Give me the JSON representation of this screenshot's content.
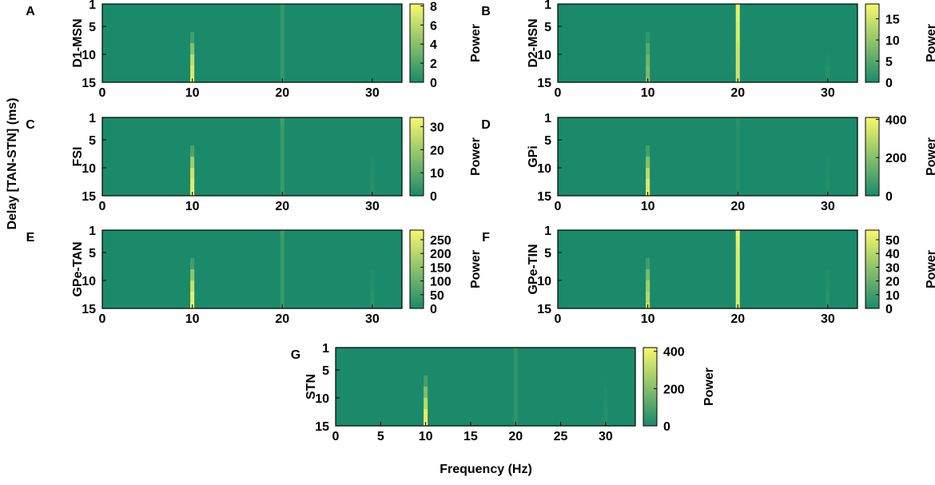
{
  "figure": {
    "ylabel": "Delay [TAN-STN] (ms)",
    "xlabel": "Frequency (Hz)"
  },
  "chart_data": [
    {
      "type": "heatmap",
      "label": "A",
      "ylabel": "D1-MSN",
      "colorbar_label": "Power",
      "colormap": [
        "#1a8a6a",
        "#f8f86c"
      ],
      "x": [
        10,
        20,
        30
      ],
      "y": [
        1,
        3,
        5,
        7,
        9,
        11,
        13,
        15
      ],
      "values": [
        [
          0,
          1,
          0
        ],
        [
          0,
          1,
          0
        ],
        [
          0,
          1,
          0
        ],
        [
          1.5,
          1,
          0
        ],
        [
          4,
          1,
          0
        ],
        [
          6,
          1,
          0
        ],
        [
          7,
          1,
          0
        ],
        [
          8,
          1,
          0
        ]
      ],
      "xlim": [
        0,
        33.3
      ],
      "xticks": [
        0,
        10,
        20,
        30
      ],
      "ylim": [
        15,
        1
      ],
      "yticks": [
        1,
        5,
        10,
        15
      ],
      "zlim": [
        0,
        8.2
      ],
      "zticks": [
        0,
        2,
        4,
        6,
        8
      ]
    },
    {
      "type": "heatmap",
      "label": "B",
      "ylabel": "D2-MSN",
      "colorbar_label": "Power",
      "colormap": [
        "#1a8a6a",
        "#f8f86c"
      ],
      "x": [
        10,
        20,
        30
      ],
      "y": [
        1,
        3,
        5,
        7,
        9,
        11,
        13,
        15
      ],
      "values": [
        [
          0,
          17,
          0
        ],
        [
          0,
          17,
          0
        ],
        [
          0,
          16,
          0
        ],
        [
          2,
          16,
          0
        ],
        [
          5,
          15,
          0
        ],
        [
          7,
          15,
          0.5
        ],
        [
          8,
          15,
          1
        ],
        [
          9,
          15,
          1
        ]
      ],
      "xlim": [
        0,
        33.3
      ],
      "xticks": [
        0,
        10,
        20,
        30
      ],
      "ylim": [
        15,
        1
      ],
      "yticks": [
        1,
        5,
        10,
        15
      ],
      "zlim": [
        0,
        18.5
      ],
      "zticks": [
        0,
        5,
        10,
        15
      ]
    },
    {
      "type": "heatmap",
      "label": "C",
      "ylabel": "FSI",
      "colorbar_label": "Power",
      "colormap": [
        "#1a8a6a",
        "#f8f86c"
      ],
      "x": [
        10,
        20,
        30
      ],
      "y": [
        1,
        3,
        5,
        7,
        9,
        11,
        13,
        15
      ],
      "values": [
        [
          0,
          6,
          0
        ],
        [
          0,
          5,
          0
        ],
        [
          0,
          5,
          0
        ],
        [
          8,
          5,
          0
        ],
        [
          20,
          5,
          1
        ],
        [
          27,
          5,
          1.5
        ],
        [
          30,
          5,
          2
        ],
        [
          33,
          5,
          2
        ]
      ],
      "xlim": [
        0,
        33.3
      ],
      "xticks": [
        0,
        10,
        20,
        30
      ],
      "ylim": [
        15,
        1
      ],
      "yticks": [
        1,
        5,
        10,
        15
      ],
      "zlim": [
        0,
        34
      ],
      "zticks": [
        0,
        10,
        20,
        30
      ]
    },
    {
      "type": "heatmap",
      "label": "D",
      "ylabel": "GPi",
      "colorbar_label": "Power",
      "colormap": [
        "#1a8a6a",
        "#f8f86c"
      ],
      "x": [
        10,
        20,
        30
      ],
      "y": [
        1,
        3,
        5,
        7,
        9,
        11,
        13,
        15
      ],
      "values": [
        [
          0,
          25,
          0
        ],
        [
          0,
          20,
          0
        ],
        [
          0,
          20,
          0
        ],
        [
          80,
          20,
          0
        ],
        [
          200,
          20,
          10
        ],
        [
          300,
          20,
          15
        ],
        [
          350,
          20,
          20
        ],
        [
          400,
          20,
          20
        ]
      ],
      "xlim": [
        0,
        33.3
      ],
      "xticks": [
        0,
        10,
        20,
        30
      ],
      "ylim": [
        15,
        1
      ],
      "yticks": [
        1,
        5,
        10,
        15
      ],
      "zlim": [
        0,
        410
      ],
      "zticks": [
        0,
        200,
        400
      ]
    },
    {
      "type": "heatmap",
      "label": "E",
      "ylabel": "GPe-TAN",
      "colorbar_label": "Power",
      "colormap": [
        "#1a8a6a",
        "#f8f86c"
      ],
      "x": [
        10,
        20,
        30
      ],
      "y": [
        1,
        3,
        5,
        7,
        9,
        11,
        13,
        15
      ],
      "values": [
        [
          0,
          45,
          0
        ],
        [
          0,
          40,
          0
        ],
        [
          0,
          40,
          0
        ],
        [
          50,
          40,
          0
        ],
        [
          150,
          40,
          10
        ],
        [
          220,
          40,
          15
        ],
        [
          260,
          40,
          20
        ],
        [
          280,
          40,
          25
        ]
      ],
      "xlim": [
        0,
        33.3
      ],
      "xticks": [
        0,
        10,
        20,
        30
      ],
      "ylim": [
        15,
        1
      ],
      "yticks": [
        1,
        5,
        10,
        15
      ],
      "zlim": [
        0,
        285
      ],
      "zticks": [
        0,
        50,
        100,
        150,
        200,
        250
      ]
    },
    {
      "type": "heatmap",
      "label": "F",
      "ylabel": "GPe-TIN",
      "colorbar_label": "Power",
      "colormap": [
        "#1a8a6a",
        "#f8f86c"
      ],
      "x": [
        10,
        20,
        30
      ],
      "y": [
        1,
        3,
        5,
        7,
        9,
        11,
        13,
        15
      ],
      "values": [
        [
          0,
          55,
          0
        ],
        [
          0,
          52,
          0
        ],
        [
          0,
          50,
          0
        ],
        [
          10,
          50,
          0
        ],
        [
          25,
          50,
          2
        ],
        [
          35,
          50,
          3
        ],
        [
          40,
          50,
          4
        ],
        [
          45,
          50,
          4
        ]
      ],
      "xlim": [
        0,
        33.3
      ],
      "xticks": [
        0,
        10,
        20,
        30
      ],
      "ylim": [
        15,
        1
      ],
      "yticks": [
        1,
        5,
        10,
        15
      ],
      "zlim": [
        0,
        57
      ],
      "zticks": [
        0,
        10,
        20,
        30,
        40,
        50
      ]
    },
    {
      "type": "heatmap",
      "label": "G",
      "ylabel": "STN",
      "colorbar_label": "Power",
      "colormap": [
        "#1a8a6a",
        "#f8f86c"
      ],
      "x": [
        10,
        20,
        30
      ],
      "y": [
        1,
        3,
        5,
        7,
        9,
        11,
        13,
        15
      ],
      "values": [
        [
          0,
          45,
          0
        ],
        [
          0,
          40,
          0
        ],
        [
          0,
          40,
          0
        ],
        [
          80,
          40,
          5
        ],
        [
          200,
          40,
          10
        ],
        [
          300,
          40,
          15
        ],
        [
          380,
          40,
          20
        ],
        [
          420,
          40,
          20
        ]
      ],
      "xlim": [
        0,
        33.3
      ],
      "xticks": [
        0,
        5,
        10,
        15,
        20,
        25,
        30
      ],
      "ylim": [
        15,
        1
      ],
      "yticks": [
        1,
        5,
        10,
        15
      ],
      "zlim": [
        0,
        420
      ],
      "zticks": [
        0,
        200,
        400
      ]
    }
  ]
}
